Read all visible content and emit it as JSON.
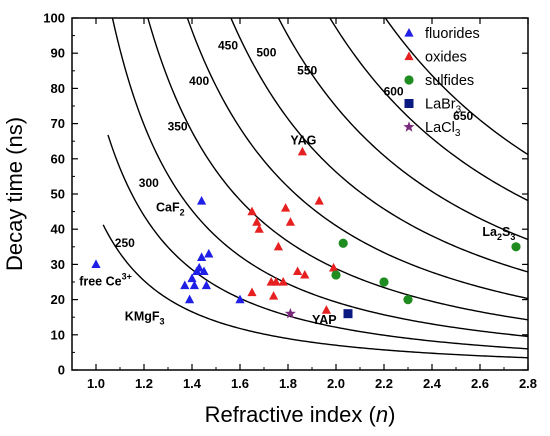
{
  "chart_data": {
    "type": "scatter",
    "title": "",
    "xlabel": "Refractive index",
    "xlabel_var": "n",
    "ylabel": "Decay time (ns)",
    "xlim": [
      0.9,
      2.8
    ],
    "ylim": [
      0,
      100
    ],
    "xticks": [
      "1.0",
      "1.2",
      "1.4",
      "1.6",
      "1.8",
      "2.0",
      "2.2",
      "2.4",
      "2.6",
      "2.8"
    ],
    "yticks": [
      "0",
      "10",
      "20",
      "30",
      "40",
      "50",
      "60",
      "70",
      "80",
      "90",
      "100"
    ],
    "legend_position": "top-right",
    "series": [
      {
        "name": "fluorides",
        "marker": "triangle",
        "color": "#1f1fe6",
        "points": [
          [
            1.0,
            30
          ],
          [
            1.37,
            24
          ],
          [
            1.39,
            20
          ],
          [
            1.4,
            26
          ],
          [
            1.41,
            24
          ],
          [
            1.42,
            28
          ],
          [
            1.43,
            29
          ],
          [
            1.44,
            48
          ],
          [
            1.44,
            32
          ],
          [
            1.45,
            28
          ],
          [
            1.46,
            24
          ],
          [
            1.47,
            33
          ],
          [
            1.6,
            20
          ]
        ]
      },
      {
        "name": "oxides",
        "marker": "triangle",
        "color": "#e62020",
        "points": [
          [
            1.65,
            45
          ],
          [
            1.65,
            22
          ],
          [
            1.67,
            42
          ],
          [
            1.68,
            40
          ],
          [
            1.73,
            25
          ],
          [
            1.74,
            21
          ],
          [
            1.75,
            25
          ],
          [
            1.76,
            35
          ],
          [
            1.78,
            25
          ],
          [
            1.79,
            46
          ],
          [
            1.81,
            42
          ],
          [
            1.84,
            28
          ],
          [
            1.86,
            62
          ],
          [
            1.87,
            27
          ],
          [
            1.93,
            48
          ],
          [
            1.96,
            17
          ],
          [
            1.99,
            29
          ]
        ]
      },
      {
        "name": "sulfides",
        "marker": "circle",
        "color": "#1e8c1e",
        "points": [
          [
            2.0,
            27
          ],
          [
            2.03,
            36
          ],
          [
            2.2,
            25
          ],
          [
            2.3,
            20
          ],
          [
            2.75,
            35
          ]
        ]
      },
      {
        "name": "LaBr3",
        "legend_base": "LaBr",
        "legend_sub": "3",
        "marker": "square",
        "color": "#0a1a80",
        "points": [
          [
            2.05,
            16
          ]
        ]
      },
      {
        "name": "LaCl3",
        "legend_base": "LaCl",
        "legend_sub": "3",
        "marker": "star",
        "color": "#7a2a7a",
        "points": [
          [
            1.81,
            16
          ]
        ]
      }
    ],
    "curves": [
      {
        "label": "250",
        "label_at": [
          1.12,
          35
        ]
      },
      {
        "label": "300",
        "label_at": [
          1.22,
          52
        ]
      },
      {
        "label": "350",
        "label_at": [
          1.34,
          68
        ]
      },
      {
        "label": "400",
        "label_at": [
          1.43,
          81
        ]
      },
      {
        "label": "450",
        "label_at": [
          1.55,
          91
        ]
      },
      {
        "label": "500",
        "label_at": [
          1.71,
          89
        ]
      },
      {
        "label": "550",
        "label_at": [
          1.88,
          84
        ]
      },
      {
        "label": "600",
        "label_at": [
          2.24,
          78
        ]
      },
      {
        "label": "650",
        "label_at": [
          2.53,
          71
        ]
      }
    ],
    "annotations": [
      {
        "base": "YAG",
        "at": [
          1.81,
          64
        ]
      },
      {
        "base": "CaF",
        "sub": "2",
        "at": [
          1.25,
          45
        ]
      },
      {
        "base": "La",
        "sub": "2",
        "base2": "S",
        "sub2": "3",
        "at": [
          2.61,
          38
        ]
      },
      {
        "base": "free Ce",
        "sup": "3+",
        "at": [
          0.93,
          24
        ]
      },
      {
        "base": "KMgF",
        "sub": "3",
        "at": [
          1.12,
          14
        ]
      },
      {
        "base": "YAP",
        "at": [
          1.9,
          13
        ]
      }
    ]
  }
}
